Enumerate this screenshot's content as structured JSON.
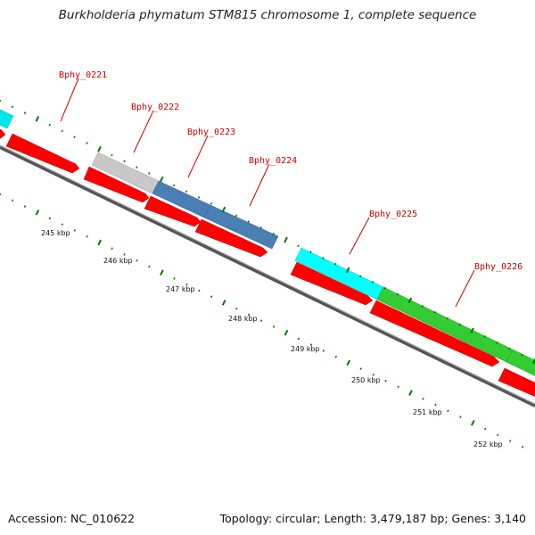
{
  "title": "Burkholderia phymatum STM815 chromosome 1, complete sequence",
  "footer": {
    "accession": "Accession: NC_010622",
    "summary": "Topology: circular; Length: 3,479,187 bp; Genes: 3,140"
  },
  "colors": {
    "cds_red": "#ff0000",
    "cyan": "#00ffff",
    "grey": "#c8c8c8",
    "steelblue": "#4a7fb5",
    "green": "#33cc33",
    "backbone": "#6e6e6e",
    "tick": "#007700",
    "label_red": "#cc0000"
  },
  "gene_labels": [
    "Bphy_0221",
    "Bphy_0222",
    "Bphy_0223",
    "Bphy_0224",
    "Bphy_0225",
    "Bphy_0226"
  ],
  "kbp_labels": [
    "245 kbp",
    "246 kbp",
    "247 kbp",
    "248 kbp",
    "249 kbp",
    "250 kbp",
    "251 kbp",
    "252 kbp"
  ]
}
